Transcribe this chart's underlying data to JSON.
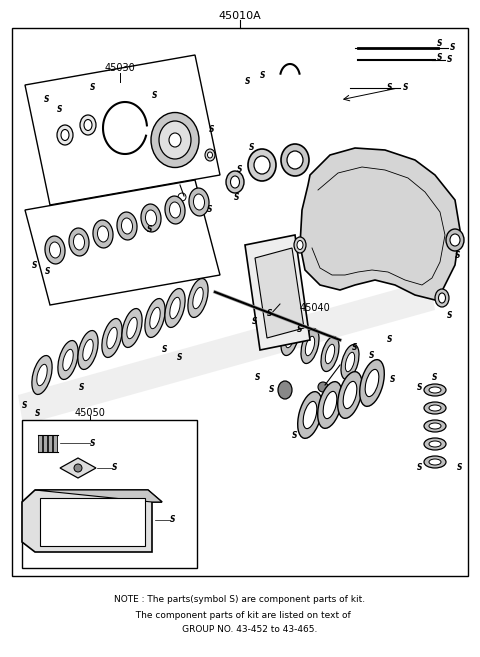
{
  "title": "45010A",
  "bg_color": "#ffffff",
  "line_color": "#000000",
  "text_color": "#000000",
  "note_line1": "NOTE : The parts(symbol S) are component parts of kit.",
  "note_line2": "  The component parts of kit are listed on text of",
  "note_line3": "       GROUP NO. 43-452 to 43-465."
}
